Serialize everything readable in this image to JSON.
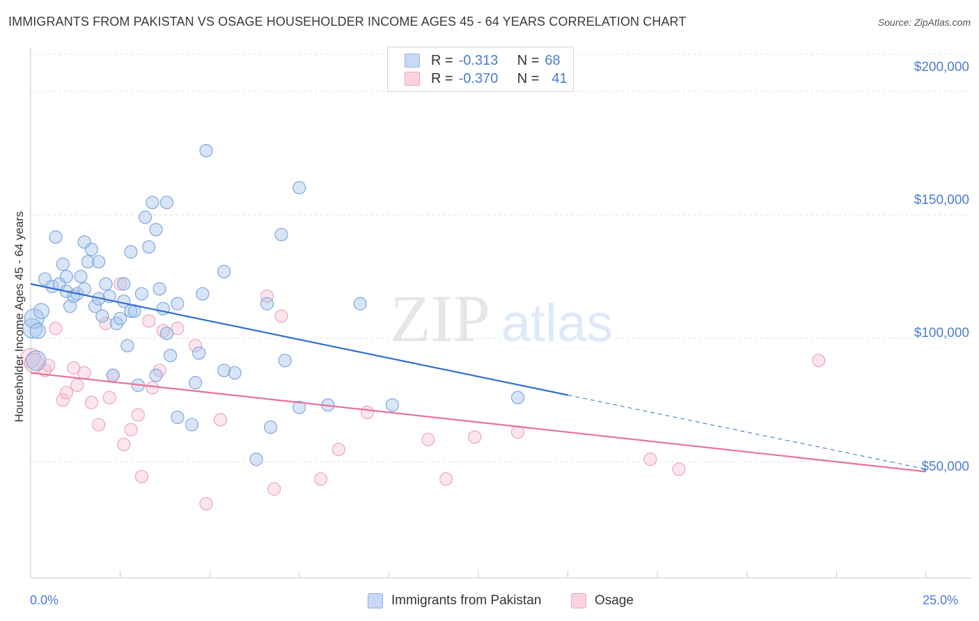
{
  "title": "IMMIGRANTS FROM PAKISTAN VS OSAGE HOUSEHOLDER INCOME AGES 45 - 64 YEARS CORRELATION CHART",
  "source": "Source: ZipAtlas.com",
  "watermark": {
    "zip": "ZIP",
    "atlas": "atlas"
  },
  "legend_top": {
    "rows": [
      {
        "r_key": "R =",
        "r_val": "-0.313",
        "n_key": "N =",
        "n_val": "68"
      },
      {
        "r_key": "R =",
        "r_val": "-0.370",
        "n_key": "N =",
        "n_val": "41"
      }
    ]
  },
  "chart_data": {
    "type": "scatter",
    "xlabel": "",
    "ylabel": "Householder Income Ages 45 - 64 years",
    "xlim": [
      0,
      25
    ],
    "ylim": [
      3000,
      215000
    ],
    "x_tick_labels": [
      "0.0%",
      "25.0%"
    ],
    "y_ticks": [
      50000,
      100000,
      150000,
      200000
    ],
    "y_tick_labels": [
      "$50,000",
      "$100,000",
      "$150,000",
      "$200,000"
    ],
    "grid": true,
    "legend_position": "bottom",
    "colors": {
      "blue": "#a9c6ee",
      "blue_line": "#2e6fd0",
      "pink": "#f4b8cb",
      "pink_line": "#e8709a"
    },
    "series": [
      {
        "name": "Immigrants from Pakistan",
        "r": -0.313,
        "n": 68,
        "trend": {
          "x0": 0.0,
          "y0": 122000,
          "x1": 15.0,
          "y1": 77000,
          "dash_to_x": 25.0,
          "dash_to_y": 47000
        },
        "points": [
          [
            0.05,
            104000
          ],
          [
            0.1,
            108000
          ],
          [
            0.2,
            103000
          ],
          [
            0.3,
            111000
          ],
          [
            0.4,
            124000
          ],
          [
            0.6,
            121000
          ],
          [
            0.7,
            141000
          ],
          [
            0.8,
            122000
          ],
          [
            0.9,
            130000
          ],
          [
            1.0,
            119000
          ],
          [
            1.0,
            125000
          ],
          [
            1.1,
            113000
          ],
          [
            1.2,
            117000
          ],
          [
            1.3,
            118000
          ],
          [
            1.4,
            125000
          ],
          [
            1.5,
            120000
          ],
          [
            1.5,
            139000
          ],
          [
            1.6,
            131000
          ],
          [
            1.7,
            136000
          ],
          [
            1.8,
            113000
          ],
          [
            1.9,
            131000
          ],
          [
            1.9,
            116000
          ],
          [
            2.0,
            109000
          ],
          [
            2.1,
            122000
          ],
          [
            2.2,
            117000
          ],
          [
            2.3,
            85000
          ],
          [
            2.4,
            106000
          ],
          [
            2.5,
            108000
          ],
          [
            2.6,
            122000
          ],
          [
            2.6,
            115000
          ],
          [
            2.7,
            97000
          ],
          [
            2.8,
            111000
          ],
          [
            2.8,
            135000
          ],
          [
            2.9,
            111000
          ],
          [
            3.0,
            81000
          ],
          [
            3.1,
            118000
          ],
          [
            3.2,
            149000
          ],
          [
            3.3,
            137000
          ],
          [
            3.4,
            155000
          ],
          [
            3.5,
            144000
          ],
          [
            3.5,
            85000
          ],
          [
            3.6,
            120000
          ],
          [
            3.7,
            112000
          ],
          [
            3.8,
            102000
          ],
          [
            3.8,
            155000
          ],
          [
            3.9,
            93000
          ],
          [
            4.1,
            68000
          ],
          [
            4.1,
            114000
          ],
          [
            4.5,
            65000
          ],
          [
            4.6,
            82000
          ],
          [
            4.7,
            94000
          ],
          [
            4.8,
            118000
          ],
          [
            4.9,
            176000
          ],
          [
            5.4,
            127000
          ],
          [
            5.4,
            87000
          ],
          [
            5.7,
            86000
          ],
          [
            6.3,
            51000
          ],
          [
            6.6,
            114000
          ],
          [
            6.7,
            64000
          ],
          [
            7.0,
            142000
          ],
          [
            7.1,
            91000
          ],
          [
            7.5,
            161000
          ],
          [
            7.5,
            72000
          ],
          [
            8.3,
            73000
          ],
          [
            9.2,
            114000
          ],
          [
            10.1,
            73000
          ],
          [
            13.6,
            76000
          ],
          [
            0.15,
            91000
          ]
        ]
      },
      {
        "name": "Osage",
        "r": -0.37,
        "n": 41,
        "trend": {
          "x0": 0.0,
          "y0": 86000,
          "x1": 25.0,
          "y1": 46000
        },
        "points": [
          [
            0.0,
            92000
          ],
          [
            0.1,
            90000
          ],
          [
            0.4,
            87000
          ],
          [
            0.5,
            89000
          ],
          [
            0.7,
            104000
          ],
          [
            0.9,
            75000
          ],
          [
            1.0,
            78000
          ],
          [
            1.2,
            88000
          ],
          [
            1.3,
            81000
          ],
          [
            1.5,
            86000
          ],
          [
            1.7,
            74000
          ],
          [
            1.9,
            65000
          ],
          [
            2.1,
            106000
          ],
          [
            2.2,
            76000
          ],
          [
            2.3,
            85000
          ],
          [
            2.5,
            122000
          ],
          [
            2.6,
            57000
          ],
          [
            2.8,
            63000
          ],
          [
            3.0,
            69000
          ],
          [
            3.1,
            44000
          ],
          [
            3.3,
            107000
          ],
          [
            3.4,
            80000
          ],
          [
            3.6,
            87000
          ],
          [
            3.7,
            103000
          ],
          [
            4.1,
            104000
          ],
          [
            4.6,
            97000
          ],
          [
            4.9,
            33000
          ],
          [
            5.3,
            67000
          ],
          [
            6.6,
            117000
          ],
          [
            6.8,
            39000
          ],
          [
            7.0,
            109000
          ],
          [
            8.1,
            43000
          ],
          [
            8.6,
            55000
          ],
          [
            9.4,
            70000
          ],
          [
            11.1,
            59000
          ],
          [
            11.6,
            43000
          ],
          [
            12.4,
            60000
          ],
          [
            13.6,
            62000
          ],
          [
            17.3,
            51000
          ],
          [
            18.1,
            47000
          ],
          [
            22.0,
            91000
          ]
        ]
      }
    ]
  },
  "legend_bottom": [
    "Immigrants from Pakistan",
    "Osage"
  ]
}
